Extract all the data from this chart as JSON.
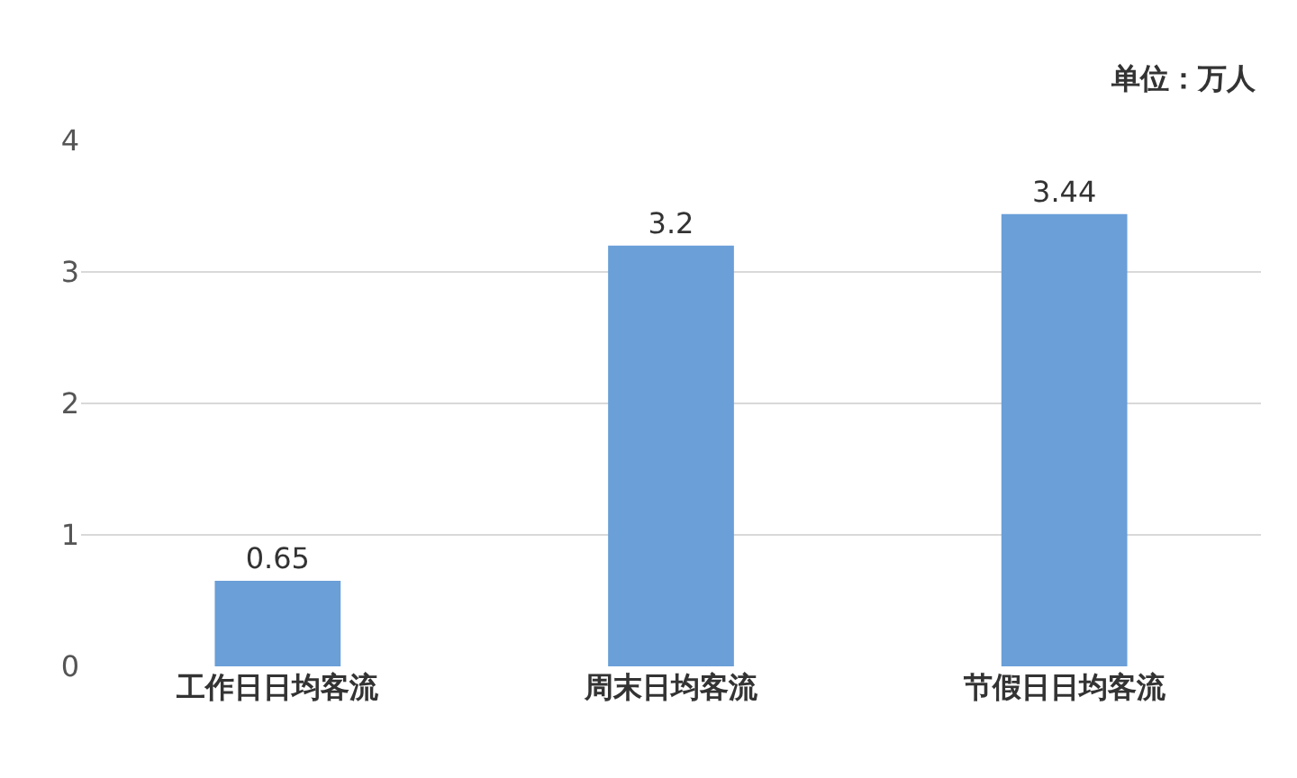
{
  "chart_data": {
    "type": "bar",
    "categories": [
      "工作日日均客流",
      "周末日均客流",
      "节假日日均客流"
    ],
    "values": [
      0.65,
      3.2,
      3.44
    ],
    "color": "#6a9fd8",
    "ylim": [
      0,
      4
    ],
    "yticks": [
      0,
      1,
      2,
      3,
      4
    ],
    "grid": "y",
    "data_labels": true,
    "annotations": [
      "单位：万人"
    ]
  }
}
